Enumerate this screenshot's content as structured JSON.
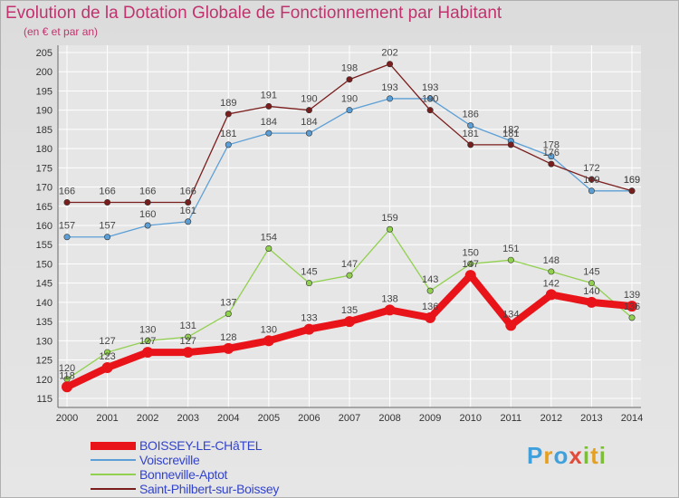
{
  "title": "Evolution de la Dotation Globale de Fonctionnement par Habitant",
  "subtitle": "(en € et par an)",
  "logo": {
    "text": "Proxiti",
    "letters": [
      "P",
      "r",
      "o",
      "x",
      "i",
      "t",
      "i"
    ],
    "colors": [
      "#3fa0dc",
      "#e5a020",
      "#3fa0dc",
      "#e24a3a",
      "#7dbd3a",
      "#e5a020",
      "#7dbd3a"
    ]
  },
  "chart_data": {
    "type": "line",
    "title": "Evolution de la Dotation Globale de Fonctionnement par Habitant",
    "ylabel": "(en € et par an)",
    "xlabel": "",
    "ylim": [
      115,
      205
    ],
    "yticks": [
      "115",
      "120",
      "125",
      "130",
      "135",
      "140",
      "145",
      "150",
      "155",
      "160",
      "165",
      "170",
      "175",
      "180",
      "185",
      "190",
      "195",
      "200",
      "205"
    ],
    "categories": [
      "2000",
      "2001",
      "2002",
      "2003",
      "2004",
      "2005",
      "2006",
      "2007",
      "2008",
      "2009",
      "2010",
      "2011",
      "2012",
      "2013",
      "2014"
    ],
    "grid": true,
    "series": [
      {
        "name": "BOISSEY-LE-CHâTEL",
        "color": "#e8141a",
        "values": [
          118,
          123,
          127,
          127,
          128,
          130,
          133,
          135,
          138,
          136,
          147,
          134,
          142,
          140,
          139
        ]
      },
      {
        "name": "Voiscreville",
        "color": "#5b9fd6",
        "values": [
          157,
          157,
          160,
          161,
          181,
          184,
          184,
          190,
          193,
          193,
          186,
          182,
          178,
          169,
          169
        ]
      },
      {
        "name": "Bonneville-Aptot",
        "color": "#92d050",
        "values": [
          120,
          127,
          130,
          131,
          137,
          154,
          145,
          147,
          159,
          143,
          150,
          151,
          148,
          145,
          136
        ]
      },
      {
        "name": "Saint-Philbert-sur-Boissey",
        "color": "#7a1d1d",
        "values": [
          166,
          166,
          166,
          166,
          189,
          191,
          190,
          198,
          202,
          190,
          181,
          181,
          176,
          172,
          169
        ]
      }
    ]
  }
}
